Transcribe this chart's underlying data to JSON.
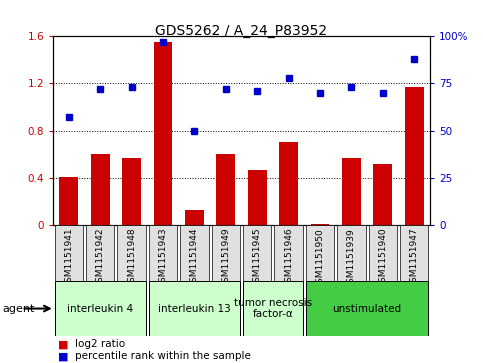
{
  "title": "GDS5262 / A_24_P83952",
  "samples": [
    "GSM1151941",
    "GSM1151942",
    "GSM1151948",
    "GSM1151943",
    "GSM1151944",
    "GSM1151949",
    "GSM1151945",
    "GSM1151946",
    "GSM1151950",
    "GSM1151939",
    "GSM1151940",
    "GSM1151947"
  ],
  "log2_ratio": [
    0.41,
    0.6,
    0.57,
    1.55,
    0.13,
    0.6,
    0.47,
    0.7,
    0.01,
    0.57,
    0.52,
    1.17
  ],
  "percentile_rank": [
    57,
    72,
    73,
    97,
    50,
    72,
    71,
    78,
    70,
    73,
    70,
    88
  ],
  "bar_color": "#cc0000",
  "dot_color": "#0000cc",
  "ylim_left": [
    0,
    1.6
  ],
  "ylim_right": [
    0,
    100
  ],
  "yticks_left": [
    0,
    0.4,
    0.8,
    1.2,
    1.6
  ],
  "yticks_right": [
    0,
    25,
    50,
    75,
    100
  ],
  "ytick_labels_left": [
    "0",
    "0.4",
    "0.8",
    "1.2",
    "1.6"
  ],
  "ytick_labels_right": [
    "0",
    "25",
    "50",
    "75",
    "100%"
  ],
  "agent_groups": [
    {
      "label": "interleukin 4",
      "start": 0,
      "end": 3,
      "color": "#ccffcc"
    },
    {
      "label": "interleukin 13",
      "start": 3,
      "end": 6,
      "color": "#ccffcc"
    },
    {
      "label": "tumor necrosis\nfactor-α",
      "start": 6,
      "end": 8,
      "color": "#ccffcc"
    },
    {
      "label": "unstimulated",
      "start": 8,
      "end": 12,
      "color": "#44cc44"
    }
  ],
  "legend_bar_label": "log2 ratio",
  "legend_dot_label": "percentile rank within the sample",
  "agent_label": "agent",
  "bg_color": "#e0e0e0",
  "plot_bg_color": "#ffffff"
}
